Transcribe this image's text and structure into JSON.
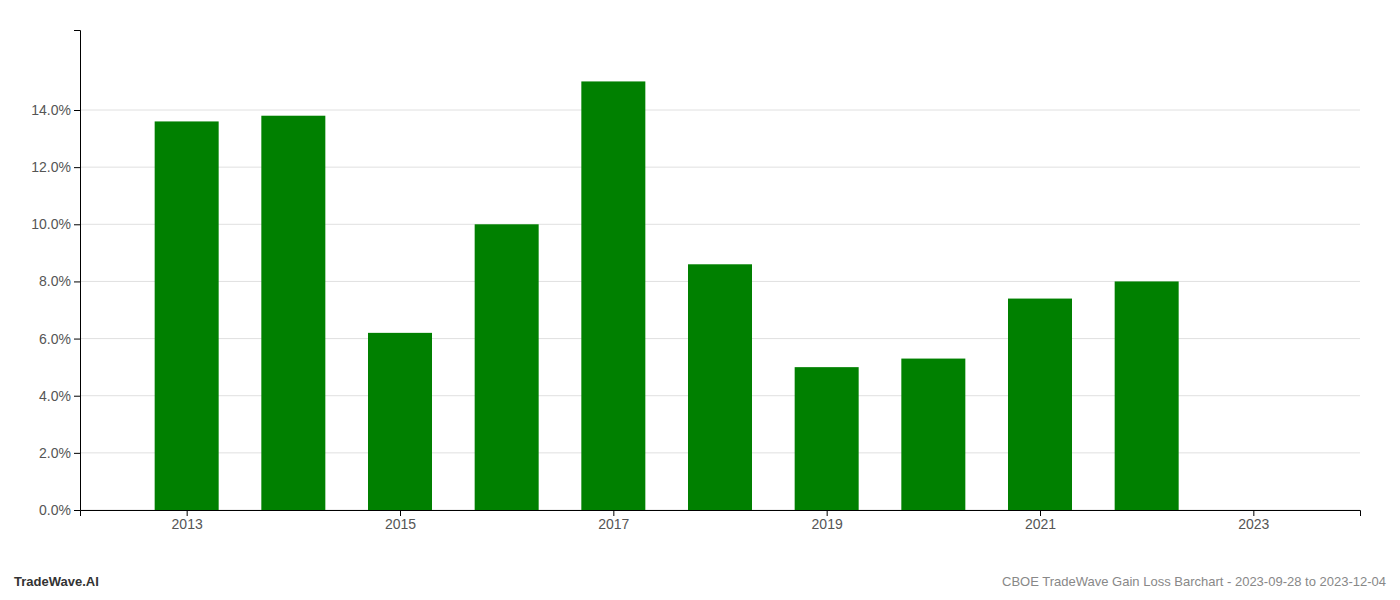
{
  "chart_data": {
    "type": "bar",
    "x": [
      2013,
      2014,
      2015,
      2016,
      2017,
      2018,
      2019,
      2020,
      2021,
      2022,
      2023
    ],
    "values": [
      0.136,
      0.138,
      0.062,
      0.1,
      0.15,
      0.086,
      0.05,
      0.053,
      0.074,
      0.08,
      null
    ],
    "color": "#008000",
    "xlim": [
      2012.0,
      2024.0
    ],
    "xticks": [
      2013,
      2015,
      2017,
      2019,
      2021,
      2023
    ],
    "ylim": [
      0,
      0.168
    ],
    "yticks": [
      {
        "value": 0.0,
        "label": "0.0%"
      },
      {
        "value": 0.02,
        "label": "2.0%"
      },
      {
        "value": 0.04,
        "label": "4.0%"
      },
      {
        "value": 0.06,
        "label": "6.0%"
      },
      {
        "value": 0.08,
        "label": "8.0%"
      },
      {
        "value": 0.1,
        "label": "10.0%"
      },
      {
        "value": 0.12,
        "label": "12.0%"
      },
      {
        "value": 0.14,
        "label": "14.0%"
      }
    ],
    "grid": true,
    "annotations": [
      "TradeWave.AI",
      "CBOE TradeWave Gain Loss Barchart - 2023-09-28 to 2023-12-04"
    ]
  }
}
